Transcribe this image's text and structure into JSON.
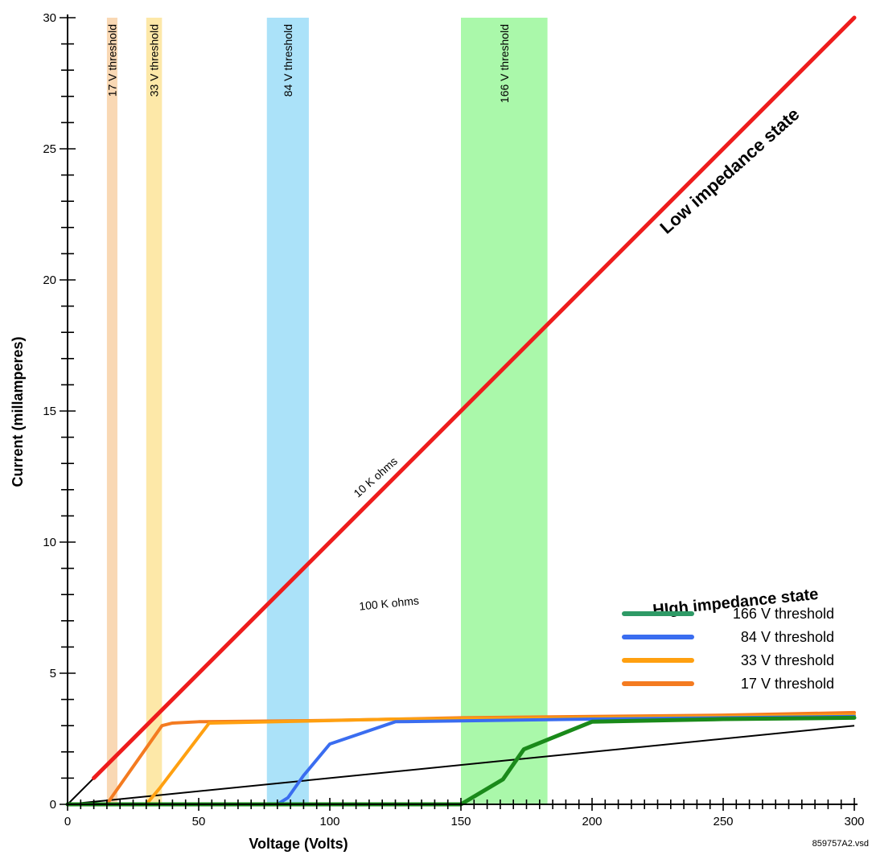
{
  "chart_data": {
    "type": "line",
    "xlabel": "Voltage (Volts)",
    "ylabel": "Current (millamperes)",
    "xlim": [
      0,
      300
    ],
    "ylim": [
      0,
      30
    ],
    "x_ticks": [
      0,
      50,
      100,
      150,
      200,
      250,
      300
    ],
    "y_ticks": [
      0,
      5,
      10,
      15,
      20,
      25,
      30
    ],
    "grid": false,
    "legend_position": "bottom-right",
    "threshold_bands": [
      {
        "label": "17 V threshold",
        "x_range": [
          15,
          19
        ],
        "color": "#f9d8b4"
      },
      {
        "label": "33 V threshold",
        "x_range": [
          30,
          36
        ],
        "color": "#fde8a8"
      },
      {
        "label": "84 V threshold",
        "x_range": [
          76,
          92
        ],
        "color": "#abe2f9"
      },
      {
        "label": "166 V threshold",
        "x_range": [
          150,
          183
        ],
        "color": "#aaf8aa"
      }
    ],
    "reference_lines": [
      {
        "label": "10 K ohms",
        "color": "#000000",
        "points": [
          [
            0,
            0
          ],
          [
            10,
            1
          ]
        ]
      },
      {
        "label": "100 K ohms",
        "color": "#000000",
        "points": [
          [
            0,
            0
          ],
          [
            300,
            3
          ]
        ]
      }
    ],
    "series": [
      {
        "name": "Low impedance state",
        "color": "#ee1c1c",
        "width": 5,
        "points": [
          [
            10,
            1
          ],
          [
            300,
            30
          ]
        ]
      },
      {
        "name": "17 V threshold",
        "color": "#f47b20",
        "width": 4,
        "points": [
          [
            0,
            0
          ],
          [
            15,
            0
          ],
          [
            17,
            0.3
          ],
          [
            36,
            3.0
          ],
          [
            40,
            3.1
          ],
          [
            50,
            3.15
          ],
          [
            100,
            3.2
          ],
          [
            150,
            3.3
          ],
          [
            200,
            3.35
          ],
          [
            250,
            3.4
          ],
          [
            300,
            3.5
          ]
        ]
      },
      {
        "name": "33 V threshold",
        "color": "#ffa010",
        "width": 4,
        "points": [
          [
            0,
            0
          ],
          [
            30,
            0
          ],
          [
            35,
            0.6
          ],
          [
            54,
            3.1
          ],
          [
            80,
            3.15
          ],
          [
            125,
            3.25
          ],
          [
            200,
            3.3
          ],
          [
            300,
            3.4
          ]
        ]
      },
      {
        "name": "84 V threshold",
        "color": "#3a6df0",
        "width": 4,
        "points": [
          [
            0,
            0
          ],
          [
            80,
            0
          ],
          [
            84,
            0.25
          ],
          [
            90,
            1.1
          ],
          [
            100,
            2.3
          ],
          [
            125,
            3.15
          ],
          [
            200,
            3.25
          ],
          [
            300,
            3.35
          ]
        ]
      },
      {
        "name": "166 V threshold",
        "color": "#1a8a1a",
        "width": 5,
        "points": [
          [
            0,
            0
          ],
          [
            150,
            0
          ],
          [
            166,
            0.95
          ],
          [
            174,
            2.1
          ],
          [
            200,
            3.15
          ],
          [
            250,
            3.25
          ],
          [
            300,
            3.3
          ]
        ]
      }
    ],
    "legend": [
      {
        "label": "166 V threshold",
        "color": "#2e9a66"
      },
      {
        "label": "84 V threshold",
        "color": "#3a6df0"
      },
      {
        "label": "33 V threshold",
        "color": "#ffa010"
      },
      {
        "label": "17 V threshold",
        "color": "#f47b20"
      }
    ],
    "annotations": {
      "low_impedance": "Low impedance state",
      "high_impedance": "HIgh impedance state",
      "ten_k": "10 K ohms",
      "hundred_k": "100 K ohms"
    },
    "footnote": "859757A2.vsd"
  }
}
